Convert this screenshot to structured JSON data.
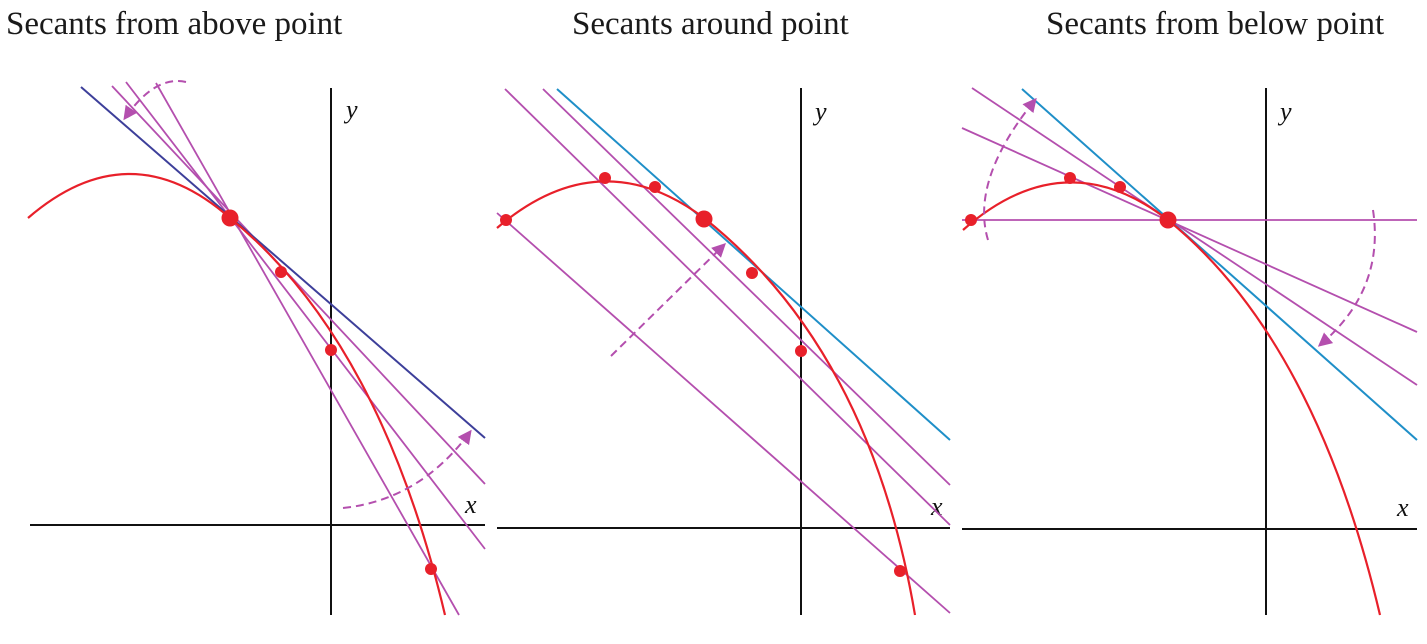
{
  "panels": [
    {
      "title": "Secants from above point",
      "x_label": "x",
      "y_label": "y"
    },
    {
      "title": "Secants around point",
      "x_label": "x",
      "y_label": "y"
    },
    {
      "title": "Secants from below point",
      "x_label": "x",
      "y_label": "y"
    }
  ],
  "colors": {
    "curve": "#e8202a",
    "secant": "#b44fae",
    "tangent_panel1": "#3d3f9a",
    "tangent": "#1f8fc8",
    "axis": "#111111",
    "point": "#e8202a",
    "arrow": "#b44fae"
  }
}
